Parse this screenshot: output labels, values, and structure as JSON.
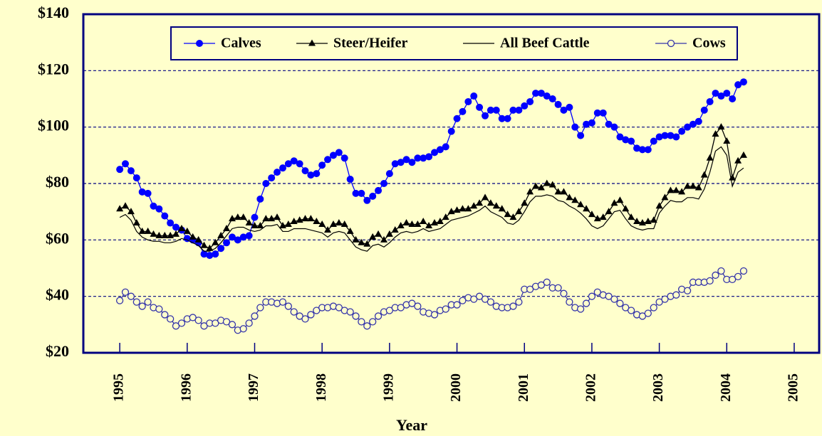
{
  "chart_data": {
    "type": "line",
    "xlabel": "Year",
    "xlim": [
      1994.46,
      2005.37
    ],
    "xticks": [
      1995,
      1996,
      1997,
      1998,
      1999,
      2000,
      2001,
      2002,
      2003,
      2004,
      2005
    ],
    "ylim": [
      20,
      140
    ],
    "yticks": [
      {
        "value": 20,
        "label": "$20"
      },
      {
        "value": 40,
        "label": "$40"
      },
      {
        "value": 60,
        "label": "$60"
      },
      {
        "value": 80,
        "label": "$80"
      },
      {
        "value": 100,
        "label": "$100"
      },
      {
        "value": 120,
        "label": "$120"
      },
      {
        "value": 140,
        "label": "$140"
      }
    ],
    "grid": true,
    "legend": "top",
    "x": [
      1995,
      1995.083,
      1995.167,
      1995.25,
      1995.333,
      1995.417,
      1995.5,
      1995.583,
      1995.667,
      1995.75,
      1995.833,
      1995.917,
      1996,
      1996.083,
      1996.167,
      1996.25,
      1996.333,
      1996.417,
      1996.5,
      1996.583,
      1996.667,
      1996.75,
      1996.833,
      1996.917,
      1997,
      1997.083,
      1997.167,
      1997.25,
      1997.333,
      1997.417,
      1997.5,
      1997.583,
      1997.667,
      1997.75,
      1997.833,
      1997.917,
      1998,
      1998.083,
      1998.167,
      1998.25,
      1998.333,
      1998.417,
      1998.5,
      1998.583,
      1998.667,
      1998.75,
      1998.833,
      1998.917,
      1999,
      1999.083,
      1999.167,
      1999.25,
      1999.333,
      1999.417,
      1999.5,
      1999.583,
      1999.667,
      1999.75,
      1999.833,
      1999.917,
      2000,
      2000.083,
      2000.167,
      2000.25,
      2000.333,
      2000.417,
      2000.5,
      2000.583,
      2000.667,
      2000.75,
      2000.833,
      2000.917,
      2001,
      2001.083,
      2001.167,
      2001.25,
      2001.333,
      2001.417,
      2001.5,
      2001.583,
      2001.667,
      2001.75,
      2001.833,
      2001.917,
      2002,
      2002.083,
      2002.167,
      2002.25,
      2002.333,
      2002.417,
      2002.5,
      2002.583,
      2002.667,
      2002.75,
      2002.833,
      2002.917,
      2003,
      2003.083,
      2003.167,
      2003.25,
      2003.333,
      2003.417,
      2003.5,
      2003.583,
      2003.667,
      2003.75,
      2003.833,
      2003.917,
      2004,
      2004.083,
      2004.167,
      2004.25
    ],
    "series": [
      {
        "name": "Calves",
        "color": "#0000ff",
        "marker": "filled-circle",
        "values": [
          85,
          87,
          84.5,
          82,
          77,
          76.5,
          72,
          71,
          68.5,
          66,
          64.5,
          63.5,
          60.5,
          60,
          59,
          55,
          54.5,
          55,
          57,
          59,
          61,
          60,
          61,
          61.5,
          68,
          74.5,
          80,
          82,
          84,
          85.5,
          87,
          88,
          87,
          84.5,
          83,
          83.5,
          86.5,
          88.5,
          90,
          91,
          89,
          81.5,
          76.5,
          76.5,
          74,
          75.5,
          77.5,
          80,
          83.5,
          87,
          87.5,
          88.5,
          87.5,
          89,
          89,
          89.5,
          91,
          92,
          93,
          98.5,
          103,
          105.5,
          109,
          111,
          107,
          104,
          106,
          106,
          103,
          103,
          106,
          106,
          107.5,
          109,
          112,
          112,
          111,
          110,
          108,
          106,
          107,
          100,
          97,
          101,
          101.5,
          105,
          105,
          101,
          100,
          96.5,
          95.5,
          95,
          92.5,
          92,
          92,
          95,
          96.5,
          97,
          97,
          96.5,
          98.5,
          100,
          101,
          102,
          106,
          109,
          112,
          111,
          112,
          110,
          115,
          116
        ]
      },
      {
        "name": "Steer/Heifer",
        "color": "#000000",
        "marker": "triangle",
        "values": [
          71,
          72,
          70,
          66,
          63,
          63,
          62,
          61.5,
          61.5,
          61.5,
          62,
          64,
          63,
          61,
          60,
          58,
          57,
          59,
          61.5,
          64,
          67.5,
          68,
          68,
          66,
          65,
          65,
          67.5,
          67.5,
          68,
          65,
          65.5,
          66.5,
          67,
          67.5,
          67.5,
          66.5,
          65.5,
          63.5,
          65.5,
          66,
          65.5,
          63,
          60,
          59,
          58.5,
          61,
          62,
          60,
          62,
          63.5,
          65,
          66,
          65.5,
          65.5,
          66.5,
          65,
          66,
          66.5,
          68,
          70,
          70.5,
          71,
          71,
          72,
          73,
          75,
          73,
          72,
          71,
          69,
          68,
          70,
          73,
          77,
          79,
          78.5,
          80,
          79.5,
          77,
          77,
          75,
          74,
          72.5,
          71,
          69,
          67.5,
          68,
          70,
          73,
          74,
          71,
          68,
          66.5,
          66,
          66.5,
          67,
          72,
          75,
          77.5,
          77.5,
          77,
          79,
          79,
          78.5,
          83,
          89,
          97.5,
          100,
          95,
          82,
          88,
          90
        ]
      },
      {
        "name": "All Beef Cattle",
        "color": "#000000",
        "marker": "none",
        "values": [
          68,
          69,
          67,
          63,
          61,
          60,
          59.5,
          59.5,
          59,
          59,
          59.5,
          60.5,
          60,
          59,
          58,
          56,
          56,
          57,
          59,
          61.5,
          64,
          64.5,
          64.5,
          63.5,
          63,
          63.5,
          65,
          65,
          65.5,
          63,
          63,
          64,
          64,
          64,
          63.5,
          63,
          62.5,
          61,
          62.5,
          63,
          62.5,
          60,
          57.5,
          56.5,
          56,
          58,
          58.5,
          57.5,
          59,
          61,
          62.5,
          63,
          62.5,
          63,
          64,
          63,
          63.5,
          64,
          65.5,
          67,
          67.5,
          68,
          68.5,
          69.5,
          70.5,
          72,
          70,
          69,
          68,
          66,
          65.5,
          67,
          70,
          73.5,
          75.5,
          75.5,
          76,
          75.5,
          74,
          73.5,
          72,
          71,
          69.5,
          67.5,
          65,
          64,
          65,
          67.5,
          70,
          70.5,
          67.5,
          65,
          64,
          63.5,
          64,
          64,
          69.5,
          72,
          74,
          73.5,
          73.5,
          75,
          75,
          74.5,
          78,
          84,
          91.5,
          93,
          90,
          79,
          84,
          85.5
        ]
      },
      {
        "name": "Cows",
        "color": "#3333aa",
        "marker": "open-circle",
        "values": [
          38.5,
          41.5,
          40,
          38,
          36.5,
          38,
          36,
          35.5,
          33.5,
          32,
          29.5,
          30.5,
          32,
          32.5,
          31.5,
          29.5,
          30.5,
          30.5,
          31.5,
          31,
          30,
          28,
          28.5,
          30.5,
          33,
          36,
          38,
          38,
          37.5,
          38,
          36.5,
          34.5,
          33,
          32,
          33.5,
          35,
          36,
          36,
          36.5,
          36,
          35,
          34.5,
          33,
          31,
          29.5,
          31,
          33,
          34.5,
          35,
          36,
          36,
          37,
          37.5,
          36.5,
          34.5,
          34,
          33.5,
          35,
          35.5,
          37,
          37,
          38.5,
          39.5,
          39,
          40,
          39,
          38,
          36.5,
          36,
          36,
          36.5,
          38,
          42.5,
          42.5,
          43.5,
          44,
          45,
          43,
          43,
          41,
          38,
          36,
          35.5,
          37.5,
          40,
          41.5,
          40.5,
          40,
          39,
          37.5,
          36,
          35,
          33.5,
          33,
          34,
          36,
          38,
          39,
          40,
          40.5,
          42.5,
          42,
          45,
          45,
          45,
          45.5,
          47.5,
          49,
          46,
          46,
          47,
          49
        ]
      }
    ]
  }
}
